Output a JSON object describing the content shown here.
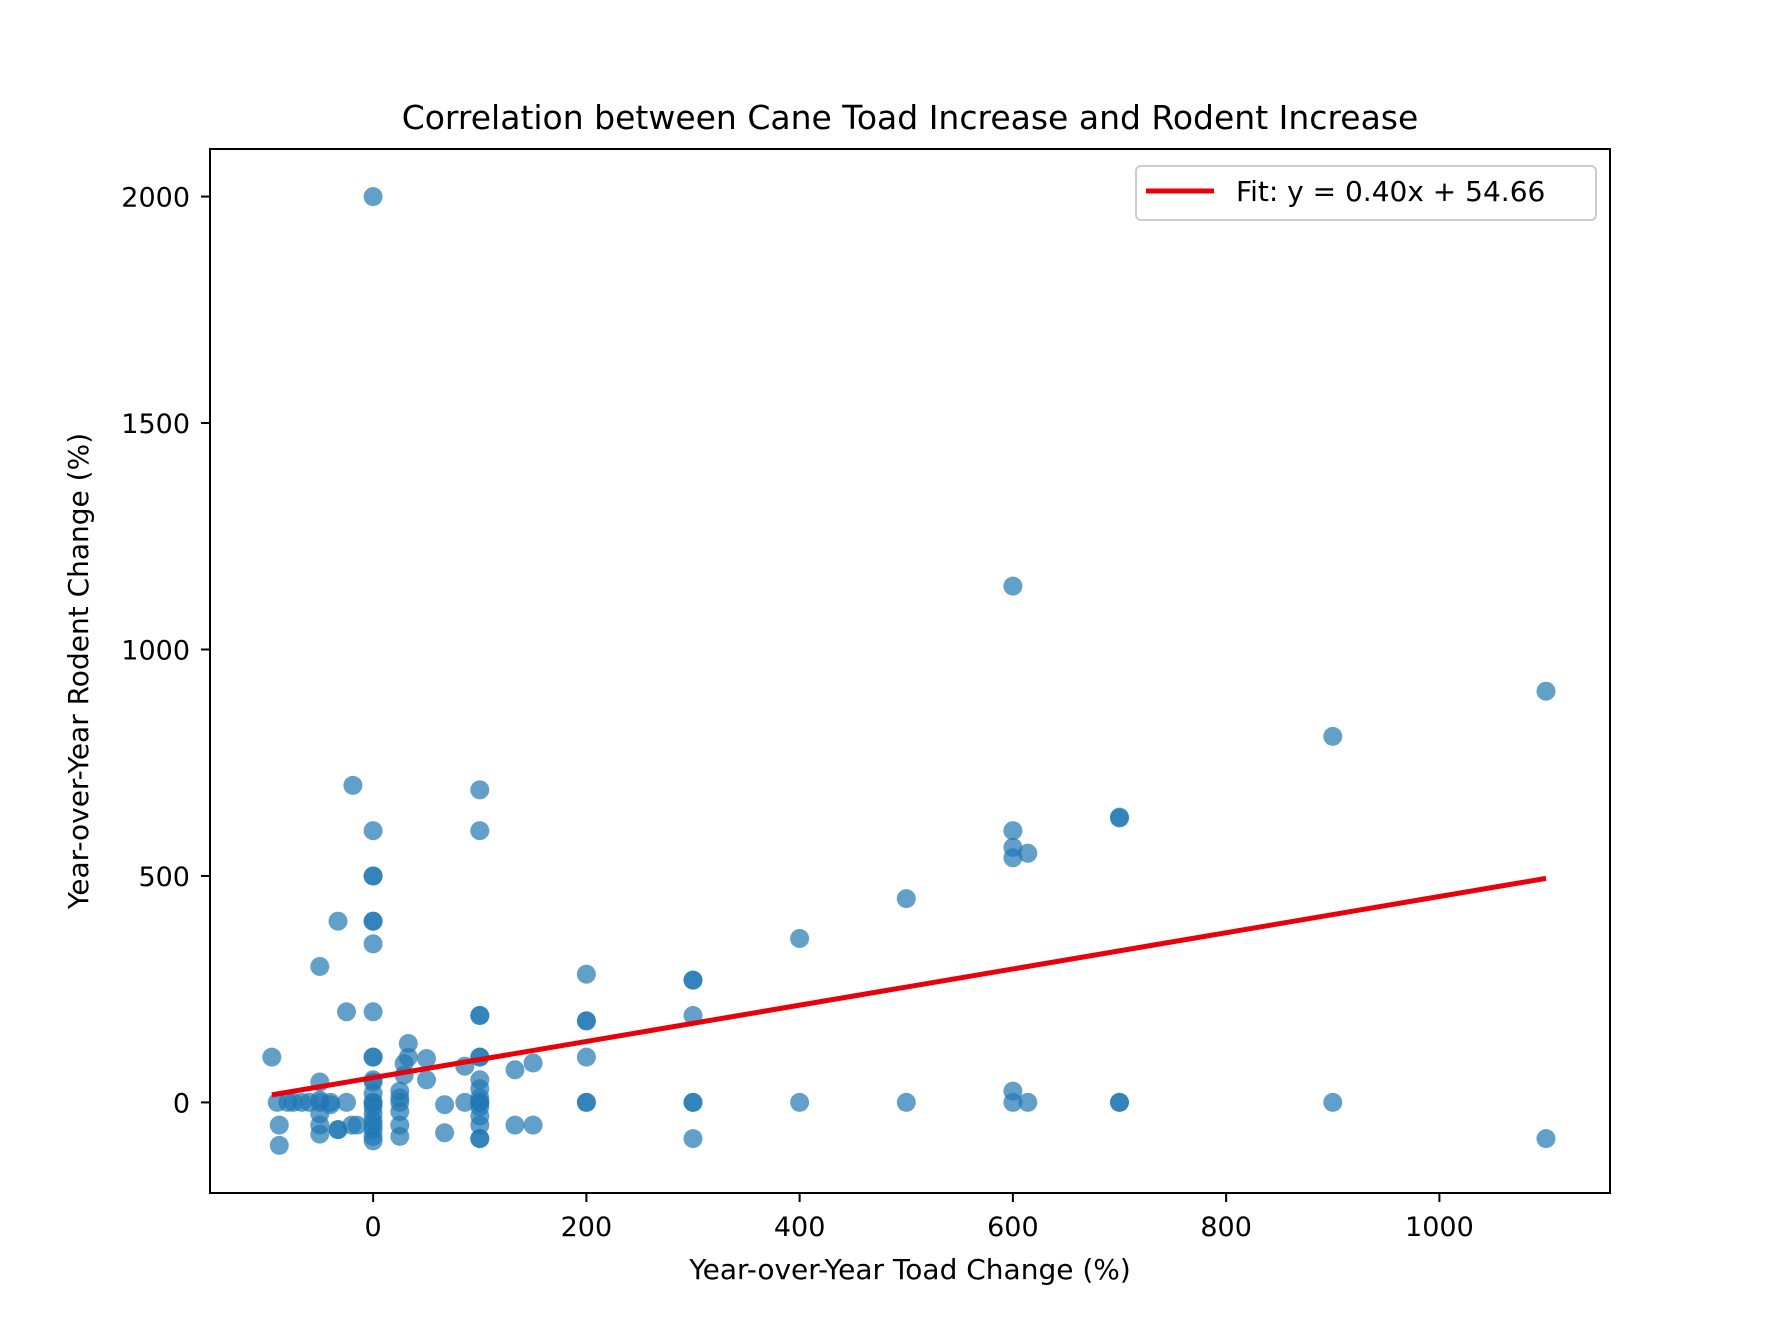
{
  "chart_data": {
    "type": "scatter",
    "title": "Correlation between Cane Toad Increase and Rodent Increase",
    "xlabel": "Year-over-Year Toad Change (%)",
    "ylabel": "Year-over-Year Rodent Change (%)",
    "xlim": [
      -153,
      1160
    ],
    "ylim": [
      -200,
      2105
    ],
    "xticks": [
      0,
      200,
      400,
      600,
      800,
      1000
    ],
    "yticks": [
      0,
      500,
      1000,
      1500,
      2000
    ],
    "grid": false,
    "legend_position": "upper right",
    "colors": {
      "points": "#1f77b4",
      "fit_line": "#e8000b"
    },
    "fit": {
      "label": "Fit: y = 0.40x + 54.66",
      "slope": 0.4,
      "intercept": 54.66,
      "x_range": [
        -95,
        1100
      ]
    },
    "points": [
      [
        0,
        2000
      ],
      [
        600,
        1140
      ],
      [
        1100,
        908
      ],
      [
        900,
        808
      ],
      [
        -19,
        700
      ],
      [
        100,
        690
      ],
      [
        0,
        600
      ],
      [
        100,
        600
      ],
      [
        700,
        630
      ],
      [
        700,
        628
      ],
      [
        600,
        600
      ],
      [
        600,
        563
      ],
      [
        600,
        540
      ],
      [
        614,
        550
      ],
      [
        0,
        500
      ],
      [
        0,
        500
      ],
      [
        500,
        450
      ],
      [
        -33,
        400
      ],
      [
        0,
        400
      ],
      [
        0,
        400
      ],
      [
        400,
        362
      ],
      [
        0,
        350
      ],
      [
        -50,
        300
      ],
      [
        200,
        283
      ],
      [
        300,
        270
      ],
      [
        300,
        270
      ],
      [
        -25,
        200
      ],
      [
        0,
        200
      ],
      [
        100,
        192
      ],
      [
        100,
        192
      ],
      [
        300,
        192
      ],
      [
        200,
        180
      ],
      [
        200,
        180
      ],
      [
        33,
        130
      ],
      [
        -95,
        100
      ],
      [
        0,
        100
      ],
      [
        0,
        100
      ],
      [
        50,
        97
      ],
      [
        100,
        100
      ],
      [
        100,
        100
      ],
      [
        200,
        100
      ],
      [
        33,
        100
      ],
      [
        150,
        87
      ],
      [
        29,
        86
      ],
      [
        86,
        80
      ],
      [
        133,
        72
      ],
      [
        29,
        60
      ],
      [
        0,
        50
      ],
      [
        50,
        50
      ],
      [
        100,
        50
      ],
      [
        0,
        45
      ],
      [
        -50,
        45
      ],
      [
        100,
        30
      ],
      [
        600,
        25
      ],
      [
        25,
        25
      ],
      [
        0,
        20
      ],
      [
        100,
        10
      ],
      [
        25,
        10
      ],
      [
        -50,
        5
      ],
      [
        -90,
        0
      ],
      [
        -80,
        0
      ],
      [
        -75,
        0
      ],
      [
        -67,
        0
      ],
      [
        -60,
        0
      ],
      [
        -50,
        0
      ],
      [
        -40,
        0
      ],
      [
        -25,
        0
      ],
      [
        0,
        0
      ],
      [
        0,
        0
      ],
      [
        25,
        0
      ],
      [
        86,
        0
      ],
      [
        100,
        0
      ],
      [
        100,
        0
      ],
      [
        200,
        0
      ],
      [
        200,
        0
      ],
      [
        300,
        0
      ],
      [
        300,
        0
      ],
      [
        400,
        0
      ],
      [
        500,
        0
      ],
      [
        600,
        0
      ],
      [
        614,
        0
      ],
      [
        700,
        0
      ],
      [
        700,
        0
      ],
      [
        900,
        0
      ],
      [
        -40,
        -5
      ],
      [
        67,
        -5
      ],
      [
        0,
        -10
      ],
      [
        100,
        -10
      ],
      [
        25,
        -20
      ],
      [
        0,
        -25
      ],
      [
        -50,
        -25
      ],
      [
        100,
        -30
      ],
      [
        -33,
        -60
      ],
      [
        -20,
        -50
      ],
      [
        -15,
        -50
      ],
      [
        0,
        -40
      ],
      [
        0,
        -50
      ],
      [
        25,
        -50
      ],
      [
        100,
        -50
      ],
      [
        133,
        -50
      ],
      [
        150,
        -50
      ],
      [
        -88,
        -50
      ],
      [
        -50,
        -50
      ],
      [
        0,
        -60
      ],
      [
        -33,
        -60
      ],
      [
        67,
        -67
      ],
      [
        -50,
        -70
      ],
      [
        25,
        -75
      ],
      [
        0,
        -75
      ],
      [
        100,
        -80
      ],
      [
        100,
        -80
      ],
      [
        300,
        -80
      ],
      [
        1100,
        -80
      ],
      [
        0,
        -85
      ],
      [
        -88,
        -95
      ]
    ]
  }
}
